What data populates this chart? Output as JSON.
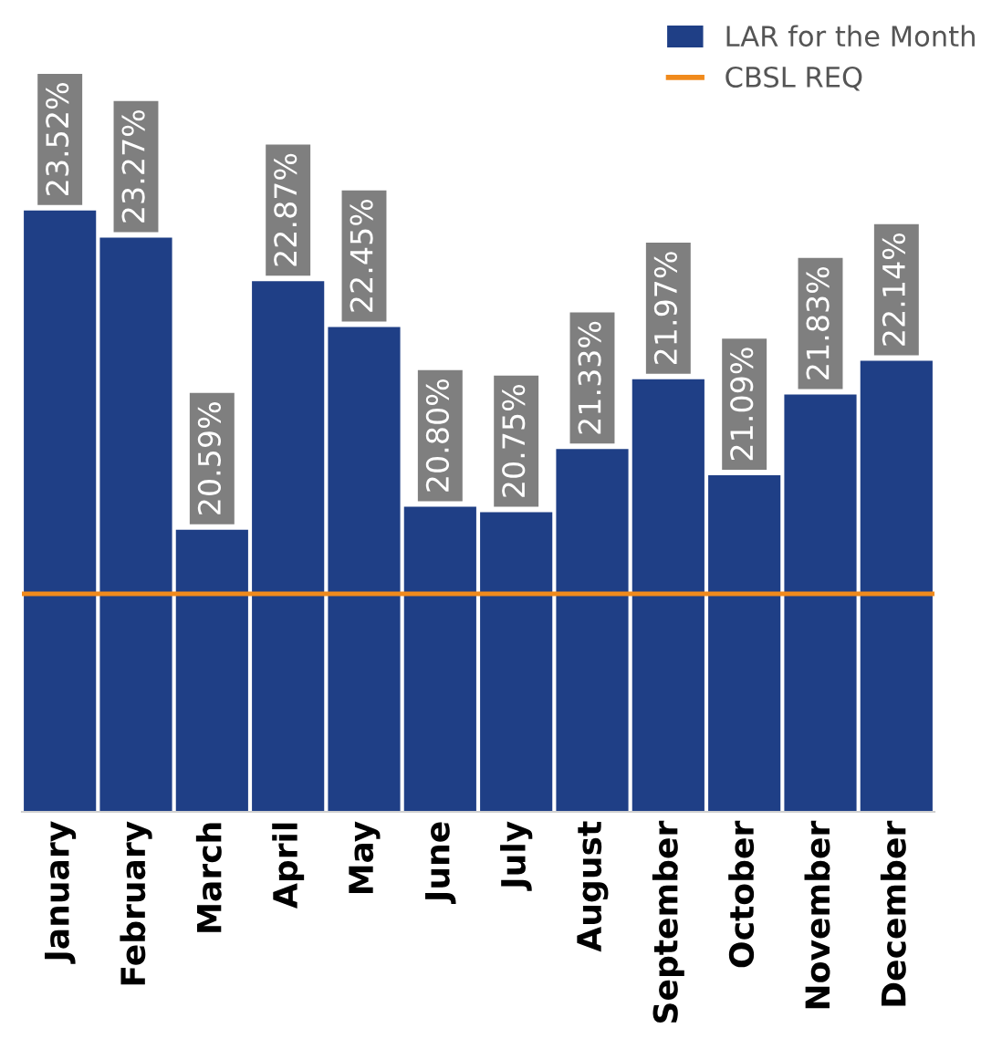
{
  "chart_data": {
    "type": "bar",
    "categories": [
      "January",
      "February",
      "March",
      "April",
      "May",
      "June",
      "July",
      "August",
      "September",
      "October",
      "November",
      "December"
    ],
    "series": [
      {
        "name": "LAR for the Month",
        "color": "#1f3f86",
        "values": [
          23.52,
          23.27,
          20.59,
          22.87,
          22.45,
          20.8,
          20.75,
          21.33,
          21.97,
          21.09,
          21.83,
          22.14
        ],
        "value_labels": [
          "23.52%",
          "23.27%",
          "20.59%",
          "22.87%",
          "22.45%",
          "20.80%",
          "20.75%",
          "21.33%",
          "21.97%",
          "21.09%",
          "21.83%",
          "22.14%"
        ]
      }
    ],
    "ylim": [
      18,
      25.2
    ],
    "tick_labels": "x",
    "grid": false,
    "legend": "top right",
    "ref_lines": [
      {
        "axis": "y",
        "value": 20,
        "label": "CBSL REQ",
        "color": "#f08a1c",
        "line_style": "solid"
      }
    ]
  }
}
